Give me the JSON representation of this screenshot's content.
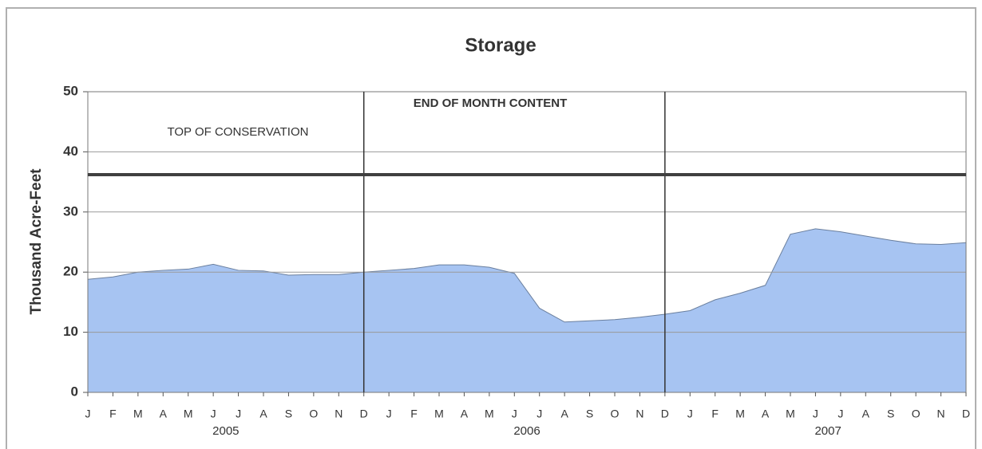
{
  "chart_data": {
    "type": "area",
    "title": "Storage",
    "ylabel": "Thousand Acre-Feet",
    "categories": [
      "J",
      "F",
      "M",
      "A",
      "M",
      "J",
      "J",
      "A",
      "S",
      "O",
      "N",
      "D",
      "J",
      "F",
      "M",
      "A",
      "M",
      "J",
      "J",
      "A",
      "S",
      "O",
      "N",
      "D",
      "J",
      "F",
      "M",
      "A",
      "M",
      "J",
      "J",
      "A",
      "S",
      "O",
      "N",
      "D"
    ],
    "years": [
      "2005",
      "2006",
      "2007"
    ],
    "series": [
      {
        "name": "END OF MONTH CONTENT",
        "color": "#a7c4f2",
        "values": [
          18.8,
          19.2,
          20.0,
          20.3,
          20.5,
          21.3,
          20.3,
          20.2,
          19.5,
          19.6,
          19.6,
          20.0,
          20.3,
          20.6,
          21.2,
          21.2,
          20.8,
          19.8,
          14.0,
          11.7,
          11.9,
          12.1,
          12.5,
          13.0,
          13.6,
          15.4,
          16.5,
          17.8,
          26.3,
          27.2,
          26.7,
          26.0,
          25.3,
          24.7,
          24.6,
          24.9
        ]
      }
    ],
    "reference_line": {
      "label": "TOP OF CONSERVATION",
      "value": 36.2,
      "color": "#404040"
    },
    "ylim": [
      0,
      50
    ],
    "yticks": [
      0,
      10,
      20,
      30,
      40,
      50
    ],
    "grid": true
  }
}
